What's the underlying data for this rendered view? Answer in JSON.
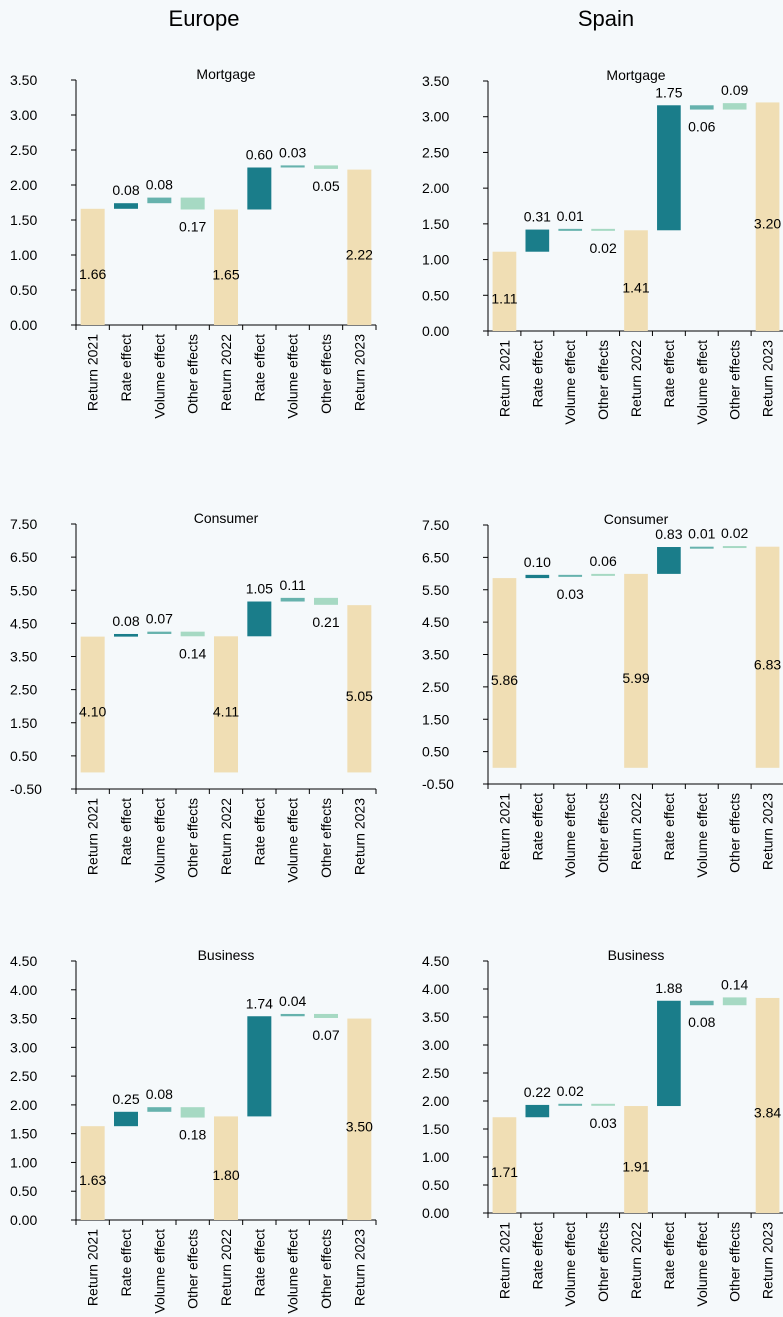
{
  "columns": {
    "left": "Europe",
    "right": "Spain"
  },
  "colors": {
    "return": "#f0deb4",
    "rate": "#1a7d8a",
    "volume": "#66b2ad",
    "other": "#a6d9c3"
  },
  "chart_data": [
    {
      "type": "waterfall",
      "region": "Europe",
      "title": "Mortgage",
      "categories": [
        "Return 2021",
        "Rate effect",
        "Volume effect",
        "Other effects",
        "Return 2022",
        "Rate effect",
        "Volume effect",
        "Other effects",
        "Return 2023"
      ],
      "values": [
        1.66,
        0.08,
        0.08,
        -0.17,
        1.65,
        0.6,
        0.03,
        -0.05,
        2.22
      ],
      "labels": [
        "1.66",
        "0.08",
        "0.08",
        "0.17",
        "1.65",
        "0.60",
        "0.03",
        "0.05",
        "2.22"
      ],
      "kinds": [
        "return",
        "rate",
        "volume",
        "other",
        "return",
        "rate",
        "volume",
        "other",
        "return"
      ],
      "ylim": [
        0,
        3.5
      ],
      "yticks": [
        "0.00",
        "0.50",
        "1.00",
        "1.50",
        "2.00",
        "2.50",
        "3.00",
        "3.50"
      ]
    },
    {
      "type": "waterfall",
      "region": "Spain",
      "title": "Mortgage",
      "categories": [
        "Return 2021",
        "Rate effect",
        "Volume effect",
        "Other effects",
        "Return 2022",
        "Rate effect",
        "Volume effect",
        "Other effects",
        "Return 2023"
      ],
      "values": [
        1.11,
        0.31,
        0.01,
        -0.02,
        1.41,
        1.75,
        -0.06,
        0.09,
        3.2
      ],
      "labels": [
        "1.11",
        "0.31",
        "0.01",
        "0.02",
        "1.41",
        "1.75",
        "0.06",
        "0.09",
        "3.20"
      ],
      "kinds": [
        "return",
        "rate",
        "volume",
        "other",
        "return",
        "rate",
        "volume",
        "other",
        "return"
      ],
      "ylim": [
        0,
        3.5
      ],
      "yticks": [
        "0.00",
        "0.50",
        "1.00",
        "1.50",
        "2.00",
        "2.50",
        "3.00",
        "3.50"
      ]
    },
    {
      "type": "waterfall",
      "region": "Europe",
      "title": "Consumer",
      "categories": [
        "Return 2021",
        "Rate effect",
        "Volume effect",
        "Other effects",
        "Return 2022",
        "Rate effect",
        "Volume effect",
        "Other effects",
        "Return 2023"
      ],
      "values": [
        4.1,
        0.08,
        0.07,
        -0.14,
        4.11,
        1.05,
        0.11,
        -0.21,
        5.05
      ],
      "labels": [
        "4.10",
        "0.08",
        "0.07",
        "0.14",
        "4.11",
        "1.05",
        "0.11",
        "0.21",
        "5.05"
      ],
      "kinds": [
        "return",
        "rate",
        "volume",
        "other",
        "return",
        "rate",
        "volume",
        "other",
        "return"
      ],
      "ylim": [
        -0.5,
        7.5
      ],
      "yticks": [
        "-0.50",
        "0.50",
        "1.50",
        "2.50",
        "3.50",
        "4.50",
        "5.50",
        "6.50",
        "7.50"
      ]
    },
    {
      "type": "waterfall",
      "region": "Spain",
      "title": "Consumer",
      "categories": [
        "Return 2021",
        "Rate effect",
        "Volume effect",
        "Other effects",
        "Return 2022",
        "Rate effect",
        "Volume effect",
        "Other effects",
        "Return 2023"
      ],
      "values": [
        5.86,
        0.1,
        -0.03,
        0.06,
        5.99,
        0.83,
        0.01,
        0.02,
        6.83
      ],
      "labels": [
        "5.86",
        "0.10",
        "0.03",
        "0.06",
        "5.99",
        "0.83",
        "0.01",
        "0.02",
        "6.83"
      ],
      "kinds": [
        "return",
        "rate",
        "volume",
        "other",
        "return",
        "rate",
        "volume",
        "other",
        "return"
      ],
      "ylim": [
        -0.5,
        7.5
      ],
      "yticks": [
        "-0.50",
        "0.50",
        "1.50",
        "2.50",
        "3.50",
        "4.50",
        "5.50",
        "6.50",
        "7.50"
      ]
    },
    {
      "type": "waterfall",
      "region": "Europe",
      "title": "Business",
      "categories": [
        "Return 2021",
        "Rate effect",
        "Volume effect",
        "Other effects",
        "Return 2022",
        "Rate effect",
        "Volume effect",
        "Other effects",
        "Return 2023"
      ],
      "values": [
        1.63,
        0.25,
        0.08,
        -0.18,
        1.8,
        1.74,
        0.04,
        -0.07,
        3.5
      ],
      "labels": [
        "1.63",
        "0.25",
        "0.08",
        "0.18",
        "1.80",
        "1.74",
        "0.04",
        "0.07",
        "3.50"
      ],
      "kinds": [
        "return",
        "rate",
        "volume",
        "other",
        "return",
        "rate",
        "volume",
        "other",
        "return"
      ],
      "ylim": [
        0,
        4.5
      ],
      "yticks": [
        "0.00",
        "0.50",
        "1.00",
        "1.50",
        "2.00",
        "2.50",
        "3.00",
        "3.50",
        "4.00",
        "4.50"
      ]
    },
    {
      "type": "waterfall",
      "region": "Spain",
      "title": "Business",
      "categories": [
        "Return 2021",
        "Rate effect",
        "Volume effect",
        "Other effects",
        "Return 2022",
        "Rate effect",
        "Volume effect",
        "Other effects",
        "Return 2023"
      ],
      "values": [
        1.71,
        0.22,
        0.02,
        -0.03,
        1.91,
        1.88,
        -0.08,
        0.14,
        3.84
      ],
      "labels": [
        "1.71",
        "0.22",
        "0.02",
        "0.03",
        "1.91",
        "1.88",
        "0.08",
        "0.14",
        "3.84"
      ],
      "kinds": [
        "return",
        "rate",
        "volume",
        "other",
        "return",
        "rate",
        "volume",
        "other",
        "return"
      ],
      "ylim": [
        0,
        4.5
      ],
      "yticks": [
        "0.00",
        "0.50",
        "1.00",
        "1.50",
        "2.00",
        "2.50",
        "3.00",
        "3.50",
        "4.00",
        "4.50"
      ]
    }
  ]
}
